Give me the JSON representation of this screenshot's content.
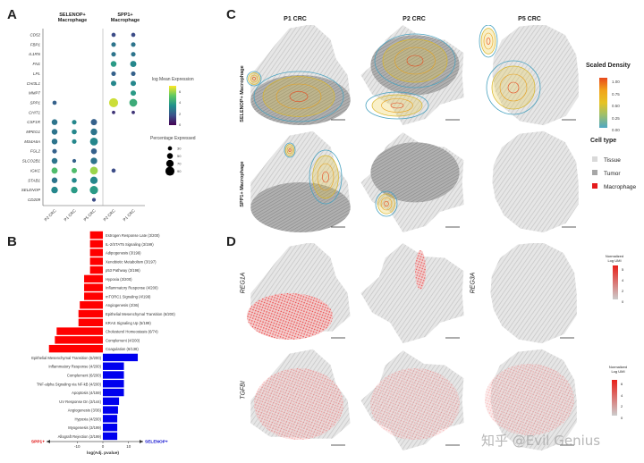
{
  "panels": {
    "a": "A",
    "b": "B",
    "c": "C",
    "d": "D"
  },
  "panel_a": {
    "groups": [
      "SELENOP+ Macrophage",
      "SPP1+ Macrophage"
    ],
    "samples": [
      "P2 CRC",
      "P1 CRC",
      "P5 CRC",
      "P2 CRC",
      "P1 CRC"
    ],
    "genes": [
      "CD52",
      "FBP1",
      "IL1RN",
      "FN1",
      "LPL",
      "CHI3L1",
      "MMP7",
      "SPP1",
      "CHIT1",
      "CSF1R",
      "MPEG1",
      "MS4A6A",
      "FGL2",
      "SLCO2B1",
      "IGKC",
      "STAB1",
      "SELENOP",
      "CD209"
    ],
    "dots": [
      {
        "gene": "SPP1",
        "col": 0,
        "pct": 30,
        "expr": 2
      },
      {
        "gene": "CSF1R",
        "col": 0,
        "pct": 50,
        "expr": 2.5
      },
      {
        "gene": "CSF1R",
        "col": 1,
        "pct": 35,
        "expr": 3
      },
      {
        "gene": "CSF1R",
        "col": 2,
        "pct": 55,
        "expr": 2
      },
      {
        "gene": "MPEG1",
        "col": 0,
        "pct": 50,
        "expr": 2.5
      },
      {
        "gene": "MPEG1",
        "col": 1,
        "pct": 40,
        "expr": 3
      },
      {
        "gene": "MPEG1",
        "col": 2,
        "pct": 60,
        "expr": 2.5
      },
      {
        "gene": "MS4A6A",
        "col": 0,
        "pct": 50,
        "expr": 2.5
      },
      {
        "gene": "MS4A6A",
        "col": 1,
        "pct": 35,
        "expr": 3
      },
      {
        "gene": "MS4A6A",
        "col": 2,
        "pct": 75,
        "expr": 3
      },
      {
        "gene": "FGL2",
        "col": 0,
        "pct": 35,
        "expr": 2
      },
      {
        "gene": "FGL2",
        "col": 2,
        "pct": 50,
        "expr": 2
      },
      {
        "gene": "SLCO2B1",
        "col": 0,
        "pct": 50,
        "expr": 2.5
      },
      {
        "gene": "SLCO2B1",
        "col": 1,
        "pct": 25,
        "expr": 2
      },
      {
        "gene": "SLCO2B1",
        "col": 2,
        "pct": 60,
        "expr": 2.5
      },
      {
        "gene": "IGKC",
        "col": 0,
        "pct": 55,
        "expr": 4.5
      },
      {
        "gene": "IGKC",
        "col": 1,
        "pct": 45,
        "expr": 4.5
      },
      {
        "gene": "IGKC",
        "col": 2,
        "pct": 75,
        "expr": 5.5
      },
      {
        "gene": "STAB1",
        "col": 0,
        "pct": 50,
        "expr": 2.5
      },
      {
        "gene": "STAB1",
        "col": 1,
        "pct": 40,
        "expr": 3
      },
      {
        "gene": "STAB1",
        "col": 2,
        "pct": 70,
        "expr": 3
      },
      {
        "gene": "SELENOP",
        "col": 0,
        "pct": 60,
        "expr": 3
      },
      {
        "gene": "SELENOP",
        "col": 1,
        "pct": 60,
        "expr": 3.5
      },
      {
        "gene": "SELENOP",
        "col": 2,
        "pct": 80,
        "expr": 3.5
      },
      {
        "gene": "CD209",
        "col": 2,
        "pct": 25,
        "expr": 1.5
      },
      {
        "gene": "CD52",
        "col": 3,
        "pct": 30,
        "expr": 1.5
      },
      {
        "gene": "CD52",
        "col": 4,
        "pct": 30,
        "expr": 1.5
      },
      {
        "gene": "FBP1",
        "col": 3,
        "pct": 35,
        "expr": 2.5
      },
      {
        "gene": "FBP1",
        "col": 4,
        "pct": 35,
        "expr": 2.5
      },
      {
        "gene": "IL1RN",
        "col": 3,
        "pct": 35,
        "expr": 2.5
      },
      {
        "gene": "IL1RN",
        "col": 4,
        "pct": 35,
        "expr": 2.5
      },
      {
        "gene": "FN1",
        "col": 3,
        "pct": 50,
        "expr": 3.5
      },
      {
        "gene": "FN1",
        "col": 4,
        "pct": 55,
        "expr": 3
      },
      {
        "gene": "LPL",
        "col": 3,
        "pct": 35,
        "expr": 2
      },
      {
        "gene": "LPL",
        "col": 4,
        "pct": 35,
        "expr": 2
      },
      {
        "gene": "CHI3L1",
        "col": 3,
        "pct": 45,
        "expr": 3
      },
      {
        "gene": "CHI3L1",
        "col": 4,
        "pct": 45,
        "expr": 3
      },
      {
        "gene": "MMP7",
        "col": 4,
        "pct": 45,
        "expr": 3.5
      },
      {
        "gene": "SPP1",
        "col": 3,
        "pct": 90,
        "expr": 6
      },
      {
        "gene": "SPP1",
        "col": 4,
        "pct": 75,
        "expr": 4
      },
      {
        "gene": "CHIT1",
        "col": 3,
        "pct": 20,
        "expr": 1
      },
      {
        "gene": "CHIT1",
        "col": 4,
        "pct": 20,
        "expr": 1
      },
      {
        "gene": "IGKC",
        "col": 3,
        "pct": 30,
        "expr": 1.5
      }
    ],
    "color_legend": {
      "title": "log Mean Expression",
      "ticks": [
        "6",
        "4",
        "2",
        "0"
      ]
    },
    "size_legend": {
      "title": "Percentage Expressed",
      "items": [
        {
          "label": "30",
          "pct": 30
        },
        {
          "label": "50",
          "pct": 50
        },
        {
          "label": "70",
          "pct": 70
        },
        {
          "label": "90",
          "pct": 90
        }
      ]
    }
  },
  "chart_data": {
    "type": "bar",
    "xlabel": "log(Adj. pvalue)",
    "xticks": [
      "-10",
      "0",
      "10"
    ],
    "xlim": [
      -24,
      16
    ],
    "left_label": "SPP1+",
    "right_label": "SELENOP+",
    "colors": {
      "SPP1+": "#ff0000",
      "SELENOP+": "#0000ee"
    },
    "categories": [
      "Estrogen Response Late (3/200)",
      "IL-2/STAT5 Signaling (3/199)",
      "Adipogenesis (3/199)",
      "Xenobiotic Metabolism (3/197)",
      "p53 Pathway (3/196)",
      "Hypoxia (3/200)",
      "Inflammatory Response (4/200)",
      "mTORC1 Signaling (4/199)",
      "Angiogenesis (2/36)",
      "Epithelial Mesenchymal Transition (6/200)",
      "KRAS Signaling Up (5/199)",
      "Cholesterol Homeostasis (6/74)",
      "Complement (4/200)",
      "Coagulation (6/138)",
      "Epithelial Mesenchymal Transition (5/200)",
      "Inflammatory Response (4/200)",
      "Complement (6/200)",
      "TNF-alpha Signaling via NF-kB (4/200)",
      "Apoptosis (4/159)",
      "UV Response Dn (3/144)",
      "Angiogenesis (3/36)",
      "Hypoxia (4/200)",
      "Myogenesis (3/199)",
      "Allograft Rejection (3/199)"
    ],
    "values": [
      -5,
      -5,
      -5,
      -5,
      -5,
      -7.3,
      -7.3,
      -7.3,
      -9,
      -9.5,
      -9.5,
      -18,
      -18.7,
      -21,
      13.6,
      8.2,
      8.2,
      8.2,
      8.2,
      6.3,
      5.9,
      5.6,
      5.6,
      5.6
    ],
    "series_group": [
      "SPP1+",
      "SPP1+",
      "SPP1+",
      "SPP1+",
      "SPP1+",
      "SPP1+",
      "SPP1+",
      "SPP1+",
      "SPP1+",
      "SPP1+",
      "SPP1+",
      "SPP1+",
      "SPP1+",
      "SPP1+",
      "SELENOP+",
      "SELENOP+",
      "SELENOP+",
      "SELENOP+",
      "SELENOP+",
      "SELENOP+",
      "SELENOP+",
      "SELENOP+",
      "SELENOP+",
      "SELENOP+"
    ]
  },
  "panel_c": {
    "columns": [
      "P1 CRC",
      "P2 CRC",
      "P5 CRC"
    ],
    "rows": [
      "SELENOP+ Macrophage",
      "SPP1+ Macrophage"
    ],
    "density_legend": {
      "title": "Scaled Density",
      "ticks": [
        "1.00",
        "0.75",
        "0.50",
        "0.25",
        "0.00"
      ]
    },
    "celltype_legend": {
      "title": "Cell type",
      "items": [
        {
          "label": "Tissue",
          "color": "#d9d9d9"
        },
        {
          "label": "Tumor",
          "color": "#a6a6a6"
        },
        {
          "label": "Macrophage",
          "color": "#e41a1c"
        }
      ]
    }
  },
  "panel_d": {
    "rows": [
      "REG1A",
      "TGFBI"
    ],
    "inner_label": "REG3A",
    "legends": [
      {
        "title_1": "Normalized",
        "title_2": "Log UMI",
        "ticks": [
          "5",
          "4",
          "2",
          "0"
        ]
      },
      {
        "title_1": "Normalized",
        "title_2": "Log UMI",
        "ticks": [
          "6",
          "4",
          "2",
          "0"
        ]
      }
    ]
  },
  "watermark": "知乎 @Evil Genius"
}
